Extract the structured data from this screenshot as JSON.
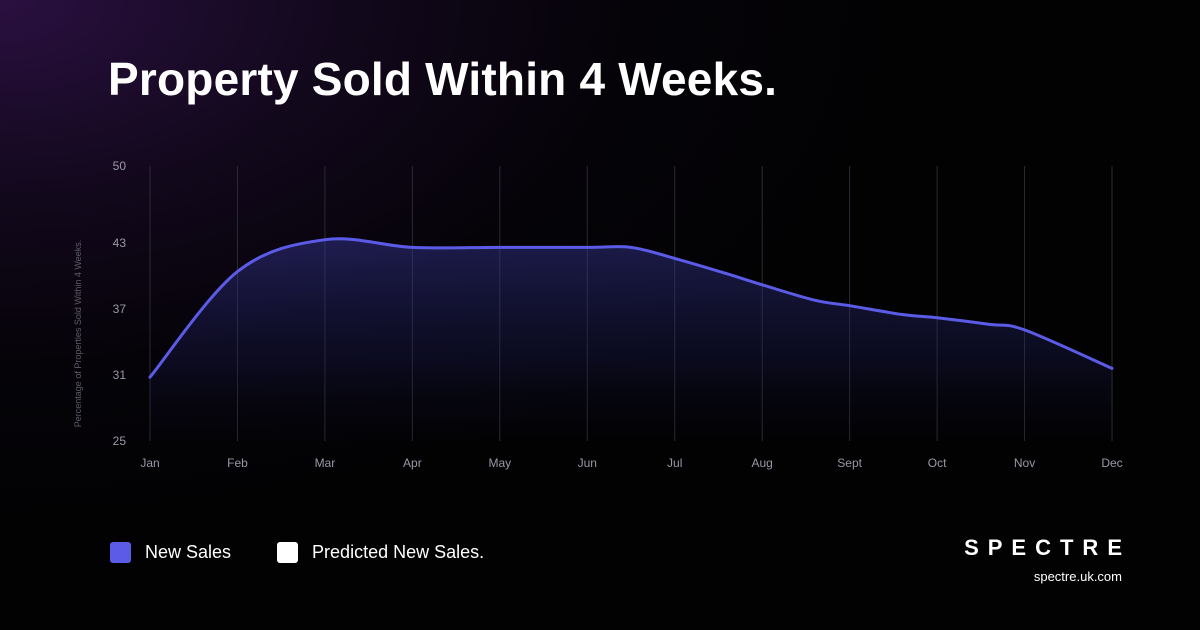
{
  "title": "Property Sold Within 4 Weeks.",
  "colors": {
    "line": "#5b5be8",
    "fill_top": "#3a3aa0",
    "grid": "#2a2a33"
  },
  "chart_data": {
    "type": "area",
    "title": "Property Sold Within 4 Weeks.",
    "xlabel": "",
    "ylabel": "Percentage of Properties Sold Within 4 Weeks.",
    "categories": [
      "Jan",
      "Feb",
      "Mar",
      "Apr",
      "May",
      "Jun",
      "Jul",
      "Aug",
      "Sept",
      "Oct",
      "Nov",
      "Dec"
    ],
    "yticks": [
      "50",
      "43",
      "37",
      "31",
      "25"
    ],
    "y_tick_values": [
      50,
      43,
      37,
      31,
      25
    ],
    "ylim": [
      25,
      50
    ],
    "grid": "vertical",
    "series": [
      {
        "name": "New Sales",
        "x": [
          0,
          1,
          2,
          3,
          4,
          5,
          5.5,
          6,
          6.6,
          7,
          7.6,
          8,
          8.6,
          9,
          9.6,
          10,
          11
        ],
        "values": [
          30.8,
          40.4,
          43.3,
          42.6,
          42.6,
          42.6,
          42.6,
          41.6,
          40.2,
          39.2,
          37.8,
          37.3,
          36.5,
          36.2,
          35.6,
          35.1,
          31.6
        ]
      }
    ],
    "legend": [
      {
        "label": "New Sales",
        "color": "#5b5be8"
      },
      {
        "label": "Predicted New Sales.",
        "color": "#ffffff"
      }
    ],
    "legend_position": "bottom-left"
  },
  "brand": {
    "name": "SPECTRE",
    "url": "spectre.uk.com"
  }
}
